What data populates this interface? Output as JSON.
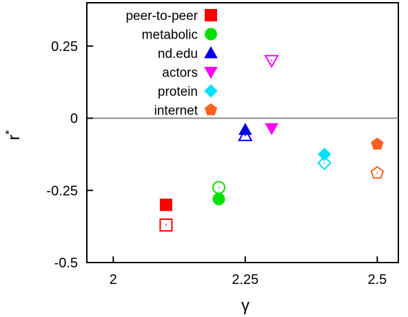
{
  "chart_data": {
    "type": "scatter",
    "title": "",
    "xlabel": "γ",
    "ylabel": "r*",
    "xlim": [
      1.95,
      2.54
    ],
    "ylim": [
      -0.5,
      0.4
    ],
    "xticks": [
      2,
      2.25,
      2.5
    ],
    "xtick_labels": [
      "2",
      "2.25",
      "2.5"
    ],
    "yticks": [
      -0.5,
      -0.25,
      0,
      0.25
    ],
    "ytick_labels": [
      "-0.5",
      "-0.25",
      "0",
      "0.25"
    ],
    "reference_line_y": 0,
    "grid": false,
    "legend_position": "top-left",
    "series": [
      {
        "name": "peer-to-peer",
        "color": "#ff0000",
        "marker": "square",
        "points": [
          {
            "x": 2.1,
            "y": -0.3,
            "filled": true
          },
          {
            "x": 2.1,
            "y": -0.37,
            "filled": false
          }
        ]
      },
      {
        "name": "metabolic",
        "color": "#00e000",
        "marker": "circle",
        "points": [
          {
            "x": 2.2,
            "y": -0.28,
            "filled": true
          },
          {
            "x": 2.2,
            "y": -0.24,
            "filled": false
          }
        ]
      },
      {
        "name": "nd.edu",
        "color": "#0000e0",
        "marker": "triangle-up",
        "points": [
          {
            "x": 2.25,
            "y": -0.04,
            "filled": true
          },
          {
            "x": 2.25,
            "y": -0.06,
            "filled": false
          }
        ]
      },
      {
        "name": "actors",
        "color": "#ff00ff",
        "marker": "triangle-down",
        "points": [
          {
            "x": 2.3,
            "y": -0.035,
            "filled": true
          },
          {
            "x": 2.3,
            "y": 0.2,
            "filled": false
          }
        ]
      },
      {
        "name": "protein",
        "color": "#00e0ff",
        "marker": "diamond",
        "points": [
          {
            "x": 2.4,
            "y": -0.125,
            "filled": true
          },
          {
            "x": 2.4,
            "y": -0.155,
            "filled": false
          }
        ]
      },
      {
        "name": "internet",
        "color": "#ff6020",
        "marker": "pentagon",
        "points": [
          {
            "x": 2.5,
            "y": -0.09,
            "filled": true
          },
          {
            "x": 2.5,
            "y": -0.19,
            "filled": false
          }
        ]
      }
    ]
  }
}
